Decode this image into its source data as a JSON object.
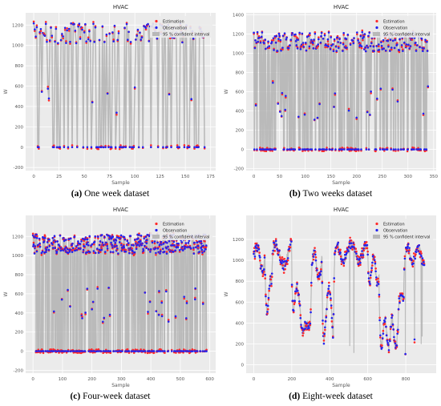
{
  "chart_data": [
    {
      "type": "scatter",
      "panel": "a",
      "title": "HVAC",
      "xlabel": "Sample",
      "ylabel": "W",
      "xlim": [
        -8,
        180
      ],
      "ylim": [
        -230,
        1320
      ],
      "xticks": [
        0,
        25,
        50,
        75,
        100,
        125,
        150,
        175
      ],
      "yticks": [
        -200,
        0,
        200,
        400,
        600,
        800,
        1000,
        1200
      ],
      "grid": true,
      "legend": "top-right",
      "n_samples": 170,
      "series": [
        {
          "name": "Estimation",
          "color": "#ff2a2a",
          "marker": "dot"
        },
        {
          "name": "Observation",
          "color": "#2222ee",
          "marker": "dot"
        },
        {
          "name": "95 % confident interval",
          "color": "#b8b8b8",
          "marker": "band"
        }
      ],
      "caption_letter": "(a)",
      "caption_text": " One week dataset"
    },
    {
      "type": "scatter",
      "panel": "b",
      "title": "HVAC",
      "xlabel": "Sample",
      "ylabel": "W",
      "xlim": [
        -15,
        355
      ],
      "ylim": [
        -220,
        1420
      ],
      "xticks": [
        0,
        50,
        100,
        150,
        200,
        250,
        300,
        350
      ],
      "yticks": [
        -200,
        0,
        200,
        400,
        600,
        800,
        1000,
        1200,
        1400
      ],
      "grid": true,
      "legend": "top-right",
      "n_samples": 340,
      "series": [
        {
          "name": "Estimation",
          "color": "#ff2a2a",
          "marker": "dot"
        },
        {
          "name": "Observation",
          "color": "#2222ee",
          "marker": "dot"
        },
        {
          "name": "95 % confident interval",
          "color": "#b8b8b8",
          "marker": "band"
        }
      ],
      "caption_letter": "(b)",
      "caption_text": " Two weeks dataset"
    },
    {
      "type": "scatter",
      "panel": "c",
      "title": "HVAC",
      "xlabel": "Sample",
      "ylabel": "W",
      "xlim": [
        -25,
        620
      ],
      "ylim": [
        -230,
        1420
      ],
      "xticks": [
        0,
        100,
        200,
        300,
        400,
        500,
        600
      ],
      "yticks": [
        -200,
        0,
        200,
        400,
        600,
        800,
        1000,
        1200
      ],
      "grid": true,
      "legend": "top-right",
      "n_samples": 590,
      "series": [
        {
          "name": "Estimation",
          "color": "#ff2a2a",
          "marker": "dot"
        },
        {
          "name": "Observation",
          "color": "#2222ee",
          "marker": "dot"
        },
        {
          "name": "95 % confident interval",
          "color": "#b8b8b8",
          "marker": "band"
        }
      ],
      "caption_letter": "(c)",
      "caption_text": " Four-week dataset"
    },
    {
      "type": "scatter",
      "panel": "d",
      "title": "HVAC",
      "xlabel": "Sample",
      "ylabel": "W",
      "xlim": [
        -40,
        960
      ],
      "ylim": [
        -80,
        1430
      ],
      "xticks": [
        0,
        200,
        400,
        600,
        800
      ],
      "yticks": [
        0,
        200,
        400,
        600,
        800,
        1000,
        1200
      ],
      "grid": true,
      "legend": "top-right",
      "n_samples": 900,
      "series": [
        {
          "name": "Estimation",
          "color": "#ff2a2a",
          "marker": "dot"
        },
        {
          "name": "Observation",
          "color": "#2222ee",
          "marker": "dot"
        },
        {
          "name": "95 % confident interval",
          "color": "#b8b8b8",
          "marker": "band"
        }
      ],
      "caption_letter": "(d)",
      "caption_text": " Eight-week dataset"
    }
  ]
}
